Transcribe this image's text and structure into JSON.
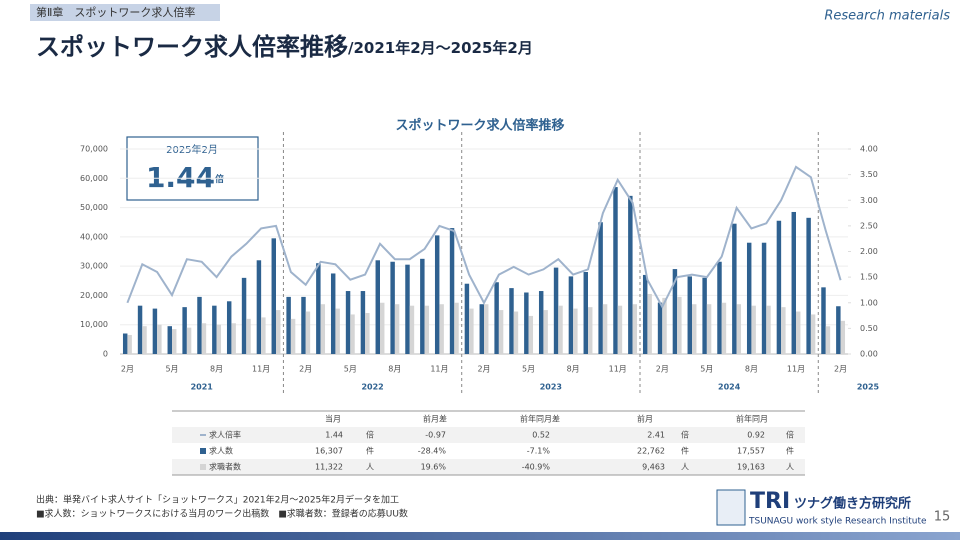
{
  "header": {
    "chapter": "第Ⅱ章　スポットワーク求人倍率",
    "tag": "Research materials",
    "title": "スポットワーク求人倍率推移",
    "subtitle": "/2021年2月～2025年2月"
  },
  "chart_data": {
    "type": "bar-line",
    "title": "スポットワーク求人倍率推移",
    "categories": [
      "2月",
      null,
      null,
      "5月",
      null,
      null,
      "8月",
      null,
      null,
      "11月",
      null,
      null,
      "2月",
      null,
      null,
      "5月",
      null,
      null,
      "8月",
      null,
      null,
      "11月",
      null,
      null,
      "2月",
      null,
      null,
      "5月",
      null,
      null,
      "8月",
      null,
      null,
      "11月",
      null,
      null,
      "2月",
      null,
      null,
      "5月",
      null,
      null,
      "8月",
      null,
      null,
      "11月",
      null,
      null,
      "2月"
    ],
    "year_labels": [
      "2021",
      "2022",
      "2023",
      "2024",
      "2025"
    ],
    "series": [
      {
        "name": "求人倍率",
        "color": "#9fb3cc",
        "axis": "y2",
        "kind": "line",
        "values": [
          1.0,
          1.75,
          1.6,
          1.15,
          1.85,
          1.8,
          1.5,
          1.9,
          2.15,
          2.45,
          2.5,
          1.6,
          1.35,
          1.8,
          1.75,
          1.45,
          1.55,
          2.15,
          1.85,
          1.85,
          2.05,
          2.5,
          2.4,
          1.55,
          1.0,
          1.55,
          1.7,
          1.55,
          1.65,
          1.85,
          1.55,
          1.65,
          2.75,
          3.4,
          2.95,
          1.45,
          0.92,
          1.5,
          1.55,
          1.5,
          1.9,
          2.85,
          2.45,
          2.55,
          3.0,
          3.65,
          3.45,
          2.41,
          1.44
        ]
      },
      {
        "name": "求人数",
        "color": "#2f6190",
        "kind": "bar",
        "values": [
          7000,
          16500,
          15500,
          9500,
          16000,
          19500,
          16500,
          18000,
          26000,
          32000,
          39500,
          19500,
          19500,
          31000,
          27500,
          21500,
          21500,
          32000,
          31500,
          30500,
          32500,
          40500,
          43000,
          24000,
          17000,
          24500,
          22500,
          21000,
          21500,
          29500,
          26500,
          28000,
          45000,
          57000,
          54000,
          27000,
          17557,
          29000,
          26500,
          26000,
          31500,
          44500,
          38000,
          38000,
          45500,
          48500,
          46500,
          22762,
          16307
        ]
      },
      {
        "name": "求職者数",
        "color": "#d5d5d5",
        "kind": "bar",
        "values": [
          6500,
          9500,
          10000,
          8500,
          9000,
          10500,
          10000,
          10500,
          12000,
          12500,
          15000,
          12000,
          14500,
          17000,
          15500,
          13500,
          14000,
          17500,
          17000,
          16500,
          16500,
          17000,
          17500,
          15500,
          17000,
          15000,
          14500,
          13000,
          15000,
          16500,
          15500,
          16000,
          17000,
          16500,
          17000,
          20500,
          19163,
          19500,
          17000,
          17000,
          17500,
          17000,
          16500,
          16500,
          16000,
          14500,
          13500,
          9463,
          11322
        ]
      }
    ],
    "ylim": [
      0,
      70000
    ],
    "yticks": [
      0,
      {
        "value": 10000,
        "label": "10,000"
      },
      {
        "value": 20000,
        "label": "20,000"
      },
      {
        "value": 30000,
        "label": "30,000"
      },
      {
        "value": 40000,
        "label": "40,000"
      },
      {
        "value": 50000,
        "label": "50,000"
      },
      {
        "value": 60000,
        "label": "60,000"
      },
      {
        "value": 70000,
        "label": "70,000"
      }
    ],
    "y2lim": [
      0,
      4
    ],
    "y2ticks": [
      {
        "value": 0,
        "label": "0.00"
      },
      {
        "value": 0.5,
        "label": "0.50"
      },
      {
        "value": 1,
        "label": "1.00"
      },
      {
        "value": 1.5,
        "label": "1.50"
      },
      {
        "value": 2,
        "label": "2.00"
      },
      {
        "value": 2.5,
        "label": "2.50"
      },
      {
        "value": 3,
        "label": "3.00"
      },
      {
        "value": 3.5,
        "label": "3.50"
      },
      {
        "value": 4,
        "label": "4.00"
      }
    ]
  },
  "callout": {
    "label": "2025年2月",
    "value": "1.44",
    "unit": "倍"
  },
  "table": {
    "columns": [
      "当月",
      "前月差",
      "前年同月差",
      "前月",
      "前年同月"
    ],
    "rows": [
      [
        "1.44",
        "倍",
        "-0.97",
        "0.52",
        "2.41",
        "倍",
        "0.92",
        "倍"
      ],
      [
        "16,307",
        "件",
        "-28.4%",
        "-7.1%",
        "22,762",
        "件",
        "17,557",
        "件"
      ],
      [
        "11,322",
        "人",
        "19.6%",
        "-40.9%",
        "9,463",
        "人",
        "19,163",
        "人"
      ]
    ]
  },
  "footer": {
    "notes": [
      "出典：単発バイト求人サイト「ショットワークス」2021年2月～2025年2月データを加工",
      "■求人数：ショットワークスにおける当月のワーク出稿数　■求職者数：登録者の応募UU数"
    ],
    "logo": "TRI",
    "logo_jp": "ツナグ働き方研究所",
    "logo_en": "TSUNAGU work style Research Institute",
    "page": "15"
  }
}
